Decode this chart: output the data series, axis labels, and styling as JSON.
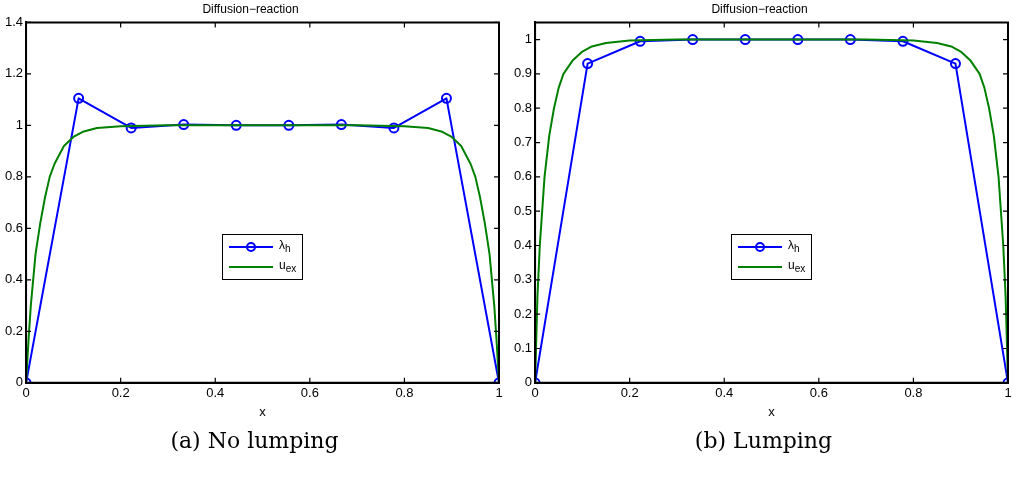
{
  "chart_data": [
    {
      "type": "line",
      "title": "Diffusion−reaction",
      "xlabel": "x",
      "annotations": [
        "(a) No lumping"
      ],
      "legend": "center",
      "grid": false,
      "xlim": [
        0,
        1
      ],
      "xticks": [
        0,
        0.2,
        0.4,
        0.6,
        0.8,
        1
      ],
      "ylim": [
        0,
        1.4
      ],
      "yticks": [
        0,
        0.2,
        0.4,
        0.6,
        0.8,
        1,
        1.2,
        1.4
      ],
      "series": [
        {
          "name": "λ$_{h}$",
          "color": "#0000ff",
          "marker": "circle",
          "x": [
            0,
            0.1111,
            0.2222,
            0.3333,
            0.4444,
            0.5556,
            0.6667,
            0.7778,
            0.8889,
            1
          ],
          "values": [
            0,
            1.105,
            0.99,
            1.003,
            1.0,
            1.0,
            1.003,
            0.99,
            1.105,
            0
          ]
        },
        {
          "name": "u$_{ex}$",
          "color": "#008000",
          "marker": "none",
          "x": [
            0,
            0.005,
            0.01,
            0.02,
            0.03,
            0.04,
            0.05,
            0.06,
            0.08,
            0.1,
            0.12,
            0.15,
            0.2,
            0.3,
            0.5,
            0.7,
            0.8,
            0.85,
            0.88,
            0.9,
            0.92,
            0.94,
            0.95,
            0.96,
            0.97,
            0.98,
            0.99,
            0.995,
            1
          ],
          "values": [
            0,
            0.16,
            0.3,
            0.5,
            0.62,
            0.72,
            0.8,
            0.85,
            0.92,
            0.955,
            0.975,
            0.99,
            0.997,
            1,
            1,
            1,
            0.997,
            0.99,
            0.975,
            0.955,
            0.92,
            0.85,
            0.8,
            0.72,
            0.62,
            0.5,
            0.3,
            0.16,
            0
          ]
        }
      ]
    },
    {
      "type": "line",
      "title": "Diffusion−reaction",
      "xlabel": "x",
      "annotations": [
        "(b) Lumping"
      ],
      "legend": "center",
      "grid": false,
      "xlim": [
        0,
        1
      ],
      "xticks": [
        0,
        0.2,
        0.4,
        0.6,
        0.8,
        1
      ],
      "ylim": [
        0,
        1.05
      ],
      "yticks": [
        0,
        0.1,
        0.2,
        0.3,
        0.4,
        0.5,
        0.6,
        0.7,
        0.8,
        0.9,
        1
      ],
      "series": [
        {
          "name": "λ$_{h}$",
          "color": "#0000ff",
          "marker": "circle",
          "x": [
            0,
            0.1111,
            0.2222,
            0.3333,
            0.4444,
            0.5556,
            0.6667,
            0.7778,
            0.8889,
            1
          ],
          "values": [
            0,
            0.93,
            0.995,
            1,
            1,
            1,
            1,
            0.995,
            0.93,
            0
          ]
        },
        {
          "name": "u$_{ex}$",
          "color": "#008000",
          "marker": "none",
          "x": [
            0,
            0.005,
            0.01,
            0.02,
            0.03,
            0.04,
            0.05,
            0.06,
            0.08,
            0.1,
            0.12,
            0.15,
            0.2,
            0.3,
            0.5,
            0.7,
            0.8,
            0.85,
            0.88,
            0.9,
            0.92,
            0.94,
            0.95,
            0.96,
            0.97,
            0.98,
            0.99,
            0.995,
            1
          ],
          "values": [
            0,
            0.25,
            0.4,
            0.6,
            0.72,
            0.8,
            0.86,
            0.9,
            0.94,
            0.965,
            0.98,
            0.99,
            0.997,
            1,
            1,
            1,
            0.997,
            0.99,
            0.98,
            0.965,
            0.94,
            0.9,
            0.86,
            0.8,
            0.72,
            0.6,
            0.4,
            0.25,
            0
          ]
        }
      ]
    }
  ]
}
